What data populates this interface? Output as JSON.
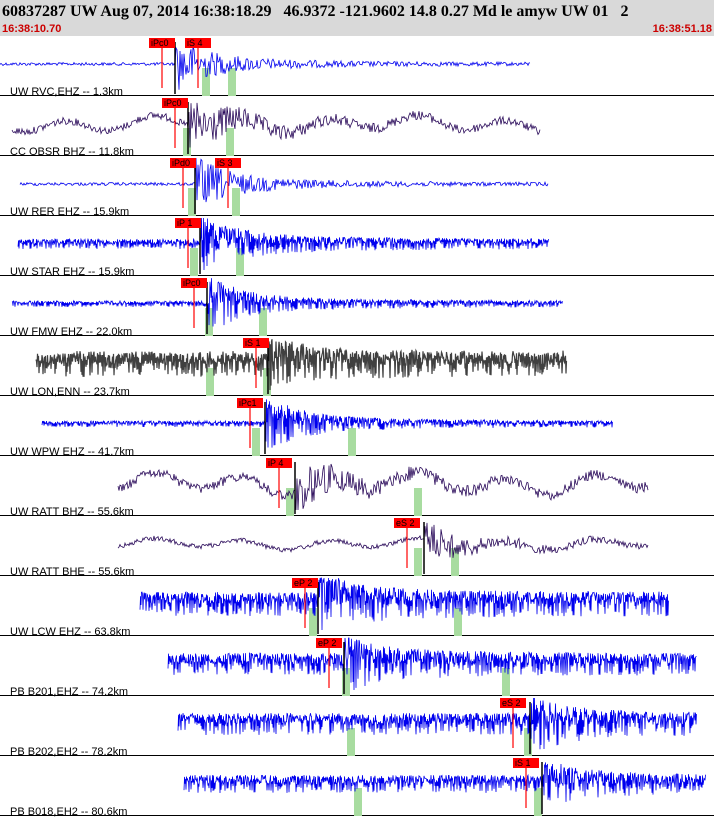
{
  "header": {
    "title": "60837287 UW Aug 07, 2014 16:38:18.29   46.9372 -121.9602 14.8 0.27 Md le amyw UW 01   2",
    "start_time": "16:38:10.70",
    "end_time": "16:38:51.18"
  },
  "colors": {
    "header_bg": "#d9d9d9",
    "time_text": "#cc0000",
    "trace_blue": "#0000ee",
    "trace_purple": "#2a0a5a",
    "trace_gray": "#404040",
    "pick_box": "#ff0000",
    "window_green": "#a8dca0"
  },
  "traces": [
    {
      "label": "UW RVC,EHZ -- 1.3km",
      "color": "blue",
      "picks": [
        {
          "text": "iPc0"
        },
        {
          "text": "iS 4"
        }
      ]
    },
    {
      "label": "CC OBSR BHZ -- 11.8km",
      "color": "purple",
      "picks": [
        {
          "text": "iPc0"
        }
      ]
    },
    {
      "label": "UW RER EHZ -- 15.9km",
      "color": "blue",
      "picks": [
        {
          "text": "iPd0"
        },
        {
          "text": "iS 3"
        }
      ]
    },
    {
      "label": "UW STAR EHZ -- 15.9km",
      "color": "blue",
      "picks": [
        {
          "text": "iP 1"
        }
      ]
    },
    {
      "label": "UW FMW EHZ -- 22.0km",
      "color": "blue",
      "picks": [
        {
          "text": "iPc0"
        }
      ]
    },
    {
      "label": "UW LON,ENN -- 23.7km",
      "color": "gray",
      "picks": [
        {
          "text": "iS 1"
        }
      ]
    },
    {
      "label": "UW WPW EHZ -- 41.7km",
      "color": "blue",
      "picks": [
        {
          "text": "iPc1"
        }
      ]
    },
    {
      "label": "UW RATT BHZ -- 55.6km",
      "color": "purple",
      "picks": [
        {
          "text": "iP 4"
        }
      ]
    },
    {
      "label": "UW RATT BHE -- 55.6km",
      "color": "purple",
      "picks": [
        {
          "text": "eS 2"
        }
      ]
    },
    {
      "label": "UW LCW EHZ -- 63.8km",
      "color": "blue",
      "picks": [
        {
          "text": "eP 2"
        }
      ]
    },
    {
      "label": "PB B201,EHZ -- 74.2km",
      "color": "blue",
      "picks": [
        {
          "text": "eP 2"
        }
      ]
    },
    {
      "label": "PB B202,EH2 -- 78.2km",
      "color": "blue",
      "picks": [
        {
          "text": "eS 2"
        }
      ]
    },
    {
      "label": "PB B018,EH2 -- 80.6km",
      "color": "blue",
      "picks": [
        {
          "text": "iS 1"
        }
      ]
    }
  ]
}
